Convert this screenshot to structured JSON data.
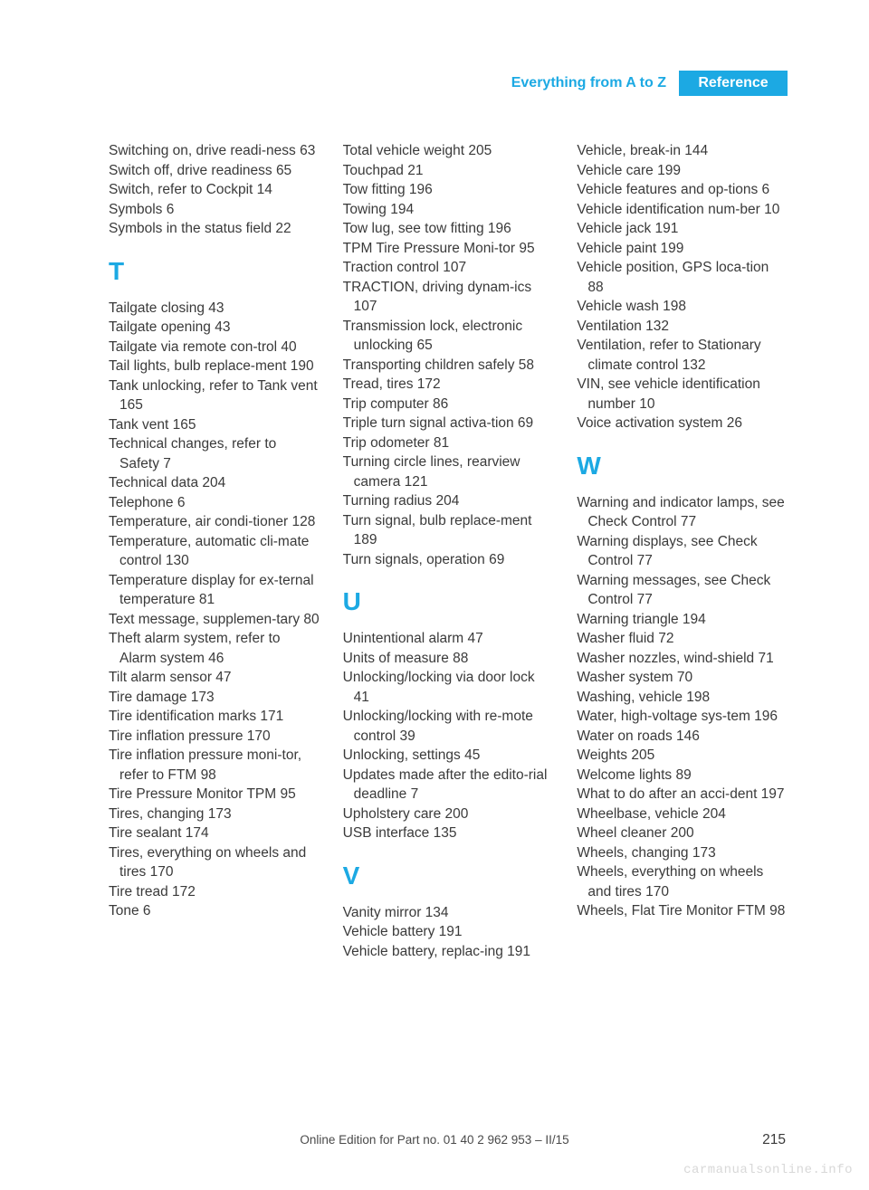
{
  "header": {
    "breadcrumb": "Everything from A to Z",
    "chip": "Reference"
  },
  "columns": [
    [
      {
        "type": "entry",
        "text": "Switching on, drive readi‐ness 63"
      },
      {
        "type": "entry",
        "text": "Switch off, drive readiness 65"
      },
      {
        "type": "entry",
        "text": "Switch, refer to Cockpit 14"
      },
      {
        "type": "entry",
        "text": "Symbols 6"
      },
      {
        "type": "entry",
        "text": "Symbols in the status field 22"
      },
      {
        "type": "letter",
        "text": "T"
      },
      {
        "type": "entry",
        "text": "Tailgate closing 43"
      },
      {
        "type": "entry",
        "text": "Tailgate opening 43"
      },
      {
        "type": "entry",
        "text": "Tailgate via remote con‐trol 40"
      },
      {
        "type": "entry",
        "text": "Tail lights, bulb replace‐ment 190"
      },
      {
        "type": "entry",
        "text": "Tank unlocking, refer to Tank vent 165"
      },
      {
        "type": "entry",
        "text": "Tank vent 165"
      },
      {
        "type": "entry",
        "text": "Technical changes, refer to Safety 7"
      },
      {
        "type": "entry",
        "text": "Technical data 204"
      },
      {
        "type": "entry",
        "text": "Telephone 6"
      },
      {
        "type": "entry",
        "text": "Temperature, air condi‐tioner 128"
      },
      {
        "type": "entry",
        "text": "Temperature, automatic cli‐mate control 130"
      },
      {
        "type": "entry",
        "text": "Temperature display for ex‐ternal temperature 81"
      },
      {
        "type": "entry",
        "text": "Text message, supplemen‐tary 80"
      },
      {
        "type": "entry",
        "text": "Theft alarm system, refer to Alarm system 46"
      },
      {
        "type": "entry",
        "text": "Tilt alarm sensor 47"
      },
      {
        "type": "entry",
        "text": "Tire damage 173"
      },
      {
        "type": "entry",
        "text": "Tire identification marks 171"
      },
      {
        "type": "entry",
        "text": "Tire inflation pressure 170"
      },
      {
        "type": "entry",
        "text": "Tire inflation pressure moni‐tor, refer to FTM 98"
      },
      {
        "type": "entry",
        "text": "Tire Pressure Monitor TPM 95"
      },
      {
        "type": "entry",
        "text": "Tires, changing 173"
      },
      {
        "type": "entry",
        "text": "Tire sealant 174"
      },
      {
        "type": "entry",
        "text": "Tires, everything on wheels and tires 170"
      },
      {
        "type": "entry",
        "text": "Tire tread 172"
      },
      {
        "type": "entry",
        "text": "Tone 6"
      }
    ],
    [
      {
        "type": "entry",
        "text": "Total vehicle weight 205"
      },
      {
        "type": "entry",
        "text": "Touchpad 21"
      },
      {
        "type": "entry",
        "text": "Tow fitting 196"
      },
      {
        "type": "entry",
        "text": "Towing 194"
      },
      {
        "type": "entry",
        "text": "Tow lug, see tow fitting 196"
      },
      {
        "type": "entry",
        "text": "TPM Tire Pressure Moni‐tor 95"
      },
      {
        "type": "entry",
        "text": "Traction control 107"
      },
      {
        "type": "entry",
        "text": "TRACTION, driving dynam‐ics 107"
      },
      {
        "type": "entry",
        "text": "Transmission lock, electronic unlocking 65"
      },
      {
        "type": "entry",
        "text": "Transporting children safely 58"
      },
      {
        "type": "entry",
        "text": "Tread, tires 172"
      },
      {
        "type": "entry",
        "text": "Trip computer 86"
      },
      {
        "type": "entry",
        "text": "Triple turn signal activa‐tion 69"
      },
      {
        "type": "entry",
        "text": "Trip odometer 81"
      },
      {
        "type": "entry",
        "text": "Turning circle lines, rearview camera 121"
      },
      {
        "type": "entry",
        "text": "Turning radius 204"
      },
      {
        "type": "entry",
        "text": "Turn signal, bulb replace‐ment 189"
      },
      {
        "type": "entry",
        "text": "Turn signals, operation 69"
      },
      {
        "type": "letter",
        "text": "U"
      },
      {
        "type": "entry",
        "text": "Unintentional alarm 47"
      },
      {
        "type": "entry",
        "text": "Units of measure 88"
      },
      {
        "type": "entry",
        "text": "Unlocking/locking via door lock 41"
      },
      {
        "type": "entry",
        "text": "Unlocking/locking with re‐mote control 39"
      },
      {
        "type": "entry",
        "text": "Unlocking, settings 45"
      },
      {
        "type": "entry",
        "text": "Updates made after the edito‐rial deadline 7"
      },
      {
        "type": "entry",
        "text": "Upholstery care 200"
      },
      {
        "type": "entry",
        "text": "USB interface 135"
      },
      {
        "type": "letter",
        "text": "V"
      },
      {
        "type": "entry",
        "text": "Vanity mirror 134"
      },
      {
        "type": "entry",
        "text": "Vehicle battery 191"
      },
      {
        "type": "entry",
        "text": "Vehicle battery, replac‐ing 191"
      }
    ],
    [
      {
        "type": "entry",
        "text": "Vehicle, break-in 144"
      },
      {
        "type": "entry",
        "text": "Vehicle care 199"
      },
      {
        "type": "entry",
        "text": "Vehicle features and op‐tions 6"
      },
      {
        "type": "entry",
        "text": "Vehicle identification num‐ber 10"
      },
      {
        "type": "entry",
        "text": "Vehicle jack 191"
      },
      {
        "type": "entry",
        "text": "Vehicle paint 199"
      },
      {
        "type": "entry",
        "text": "Vehicle position, GPS loca‐tion 88"
      },
      {
        "type": "entry",
        "text": "Vehicle wash 198"
      },
      {
        "type": "entry",
        "text": "Ventilation 132"
      },
      {
        "type": "entry",
        "text": "Ventilation, refer to Stationary climate control 132"
      },
      {
        "type": "entry",
        "text": "VIN, see vehicle identification number 10"
      },
      {
        "type": "entry",
        "text": "Voice activation system 26"
      },
      {
        "type": "letter",
        "text": "W"
      },
      {
        "type": "entry",
        "text": "Warning and indicator lamps, see Check Control 77"
      },
      {
        "type": "entry",
        "text": "Warning displays, see Check Control 77"
      },
      {
        "type": "entry",
        "text": "Warning messages, see Check Control 77"
      },
      {
        "type": "entry",
        "text": "Warning triangle 194"
      },
      {
        "type": "entry",
        "text": "Washer fluid 72"
      },
      {
        "type": "entry",
        "text": "Washer nozzles, wind‐shield 71"
      },
      {
        "type": "entry",
        "text": "Washer system 70"
      },
      {
        "type": "entry",
        "text": "Washing, vehicle 198"
      },
      {
        "type": "entry",
        "text": "Water, high-voltage sys‐tem 196"
      },
      {
        "type": "entry",
        "text": "Water on roads 146"
      },
      {
        "type": "entry",
        "text": "Weights 205"
      },
      {
        "type": "entry",
        "text": "Welcome lights 89"
      },
      {
        "type": "entry",
        "text": "What to do after an acci‐dent 197"
      },
      {
        "type": "entry",
        "text": "Wheelbase, vehicle 204"
      },
      {
        "type": "entry",
        "text": "Wheel cleaner 200"
      },
      {
        "type": "entry",
        "text": "Wheels, changing 173"
      },
      {
        "type": "entry",
        "text": "Wheels, everything on wheels and tires 170"
      },
      {
        "type": "entry",
        "text": "Wheels, Flat Tire Monitor FTM 98"
      }
    ]
  ],
  "footer": "Online Edition for Part no. 01 40 2 962 953 – II/15",
  "pageNumber": "215",
  "watermark": "carmanualsonline.info"
}
